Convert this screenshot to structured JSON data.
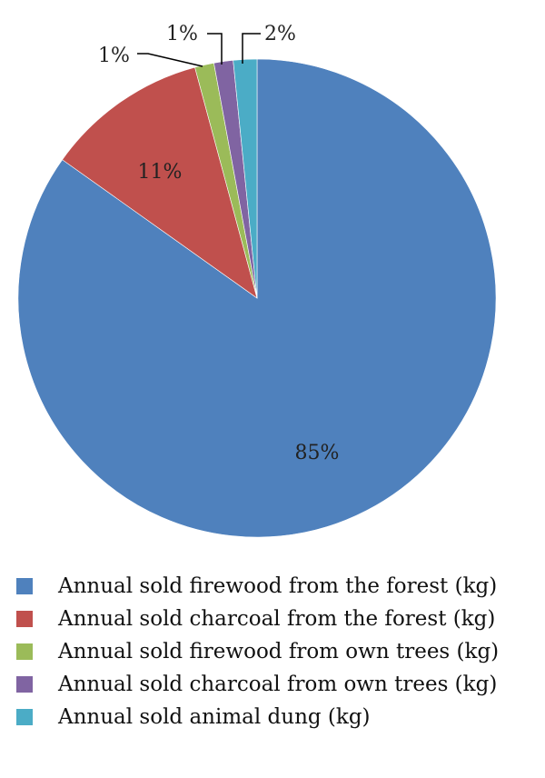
{
  "chart_data": {
    "type": "pie",
    "title": "",
    "slices": [
      {
        "label": "Annual sold firewood from the forest (kg)",
        "value": 85,
        "display": "85%",
        "color": "#4f81bd"
      },
      {
        "label": "Annual sold charcoal from the forest (kg)",
        "value": 11,
        "display": "11%",
        "color": "#c0504d"
      },
      {
        "label": "Annual sold firewood from own trees (kg)",
        "value": 1.3,
        "display": "1%",
        "color": "#9bbb59"
      },
      {
        "label": "Annual sold charcoal from own trees (kg)",
        "value": 1.3,
        "display": "1%",
        "color": "#8064a2"
      },
      {
        "label": "Annual sold animal dung (kg)",
        "value": 1.6,
        "display": "2%",
        "color": "#4bacc6"
      }
    ],
    "start_angle": "12 o'clock, clockwise",
    "legend_position": "bottom"
  }
}
